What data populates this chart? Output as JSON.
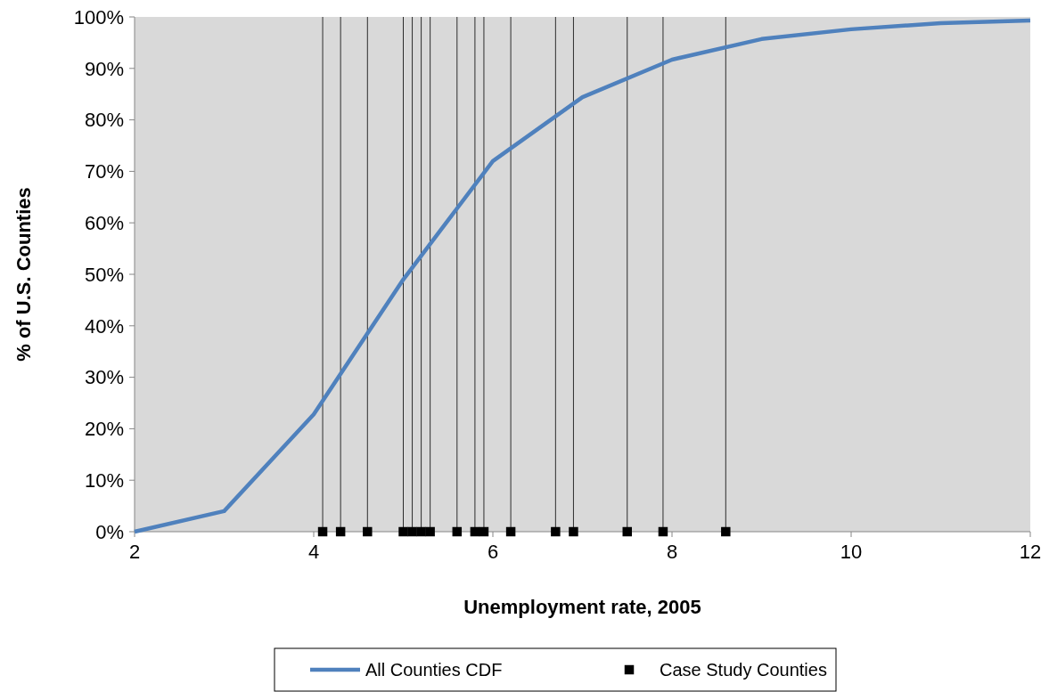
{
  "chart_data": {
    "type": "line",
    "xlabel": "Unemployment rate, 2005",
    "ylabel": "% of U.S. Counties",
    "xlim": [
      2,
      12
    ],
    "xticks": [
      2,
      4,
      6,
      8,
      10,
      12
    ],
    "ylim": [
      0,
      100
    ],
    "yticks": [
      {
        "value": 0,
        "label": "0%"
      },
      {
        "value": 10,
        "label": "10%"
      },
      {
        "value": 20,
        "label": "20%"
      },
      {
        "value": 30,
        "label": "30%"
      },
      {
        "value": 40,
        "label": "40%"
      },
      {
        "value": 50,
        "label": "50%"
      },
      {
        "value": 60,
        "label": "60%"
      },
      {
        "value": 70,
        "label": "70%"
      },
      {
        "value": 80,
        "label": "80%"
      },
      {
        "value": 90,
        "label": "90%"
      },
      {
        "value": 100,
        "label": "100%"
      }
    ],
    "series": [
      {
        "name": "All Counties CDF",
        "color": "#4f81bd",
        "marker": "none",
        "x": [
          2,
          3,
          4,
          5,
          6,
          7,
          8,
          9,
          10,
          11,
          12
        ],
        "values": [
          0,
          4,
          22.8,
          49,
          72,
          84.4,
          91.7,
          95.7,
          97.6,
          98.8,
          99.3
        ]
      },
      {
        "name": "Case Study Counties",
        "type": "scatter",
        "color": "#000000",
        "marker": "square",
        "x": [
          4.1,
          4.3,
          4.6,
          5.0,
          5.1,
          5.2,
          5.3,
          5.6,
          5.8,
          5.9,
          6.2,
          6.7,
          6.9,
          7.5,
          7.9,
          8.6
        ],
        "values": [
          0,
          0,
          0,
          0,
          0,
          0,
          0,
          0,
          0,
          0,
          0,
          0,
          0,
          0,
          0,
          0
        ]
      }
    ],
    "ref_lines": [
      {
        "axis": "x",
        "value": 4.1
      },
      {
        "axis": "x",
        "value": 4.3
      },
      {
        "axis": "x",
        "value": 4.6
      },
      {
        "axis": "x",
        "value": 5.0
      },
      {
        "axis": "x",
        "value": 5.1
      },
      {
        "axis": "x",
        "value": 5.2
      },
      {
        "axis": "x",
        "value": 5.3
      },
      {
        "axis": "x",
        "value": 5.6
      },
      {
        "axis": "x",
        "value": 5.8
      },
      {
        "axis": "x",
        "value": 5.9
      },
      {
        "axis": "x",
        "value": 6.2
      },
      {
        "axis": "x",
        "value": 6.7
      },
      {
        "axis": "x",
        "value": 6.9
      },
      {
        "axis": "x",
        "value": 7.5
      },
      {
        "axis": "x",
        "value": 7.9
      },
      {
        "axis": "x",
        "value": 8.6
      }
    ],
    "legend": "bottom",
    "grid": false
  }
}
